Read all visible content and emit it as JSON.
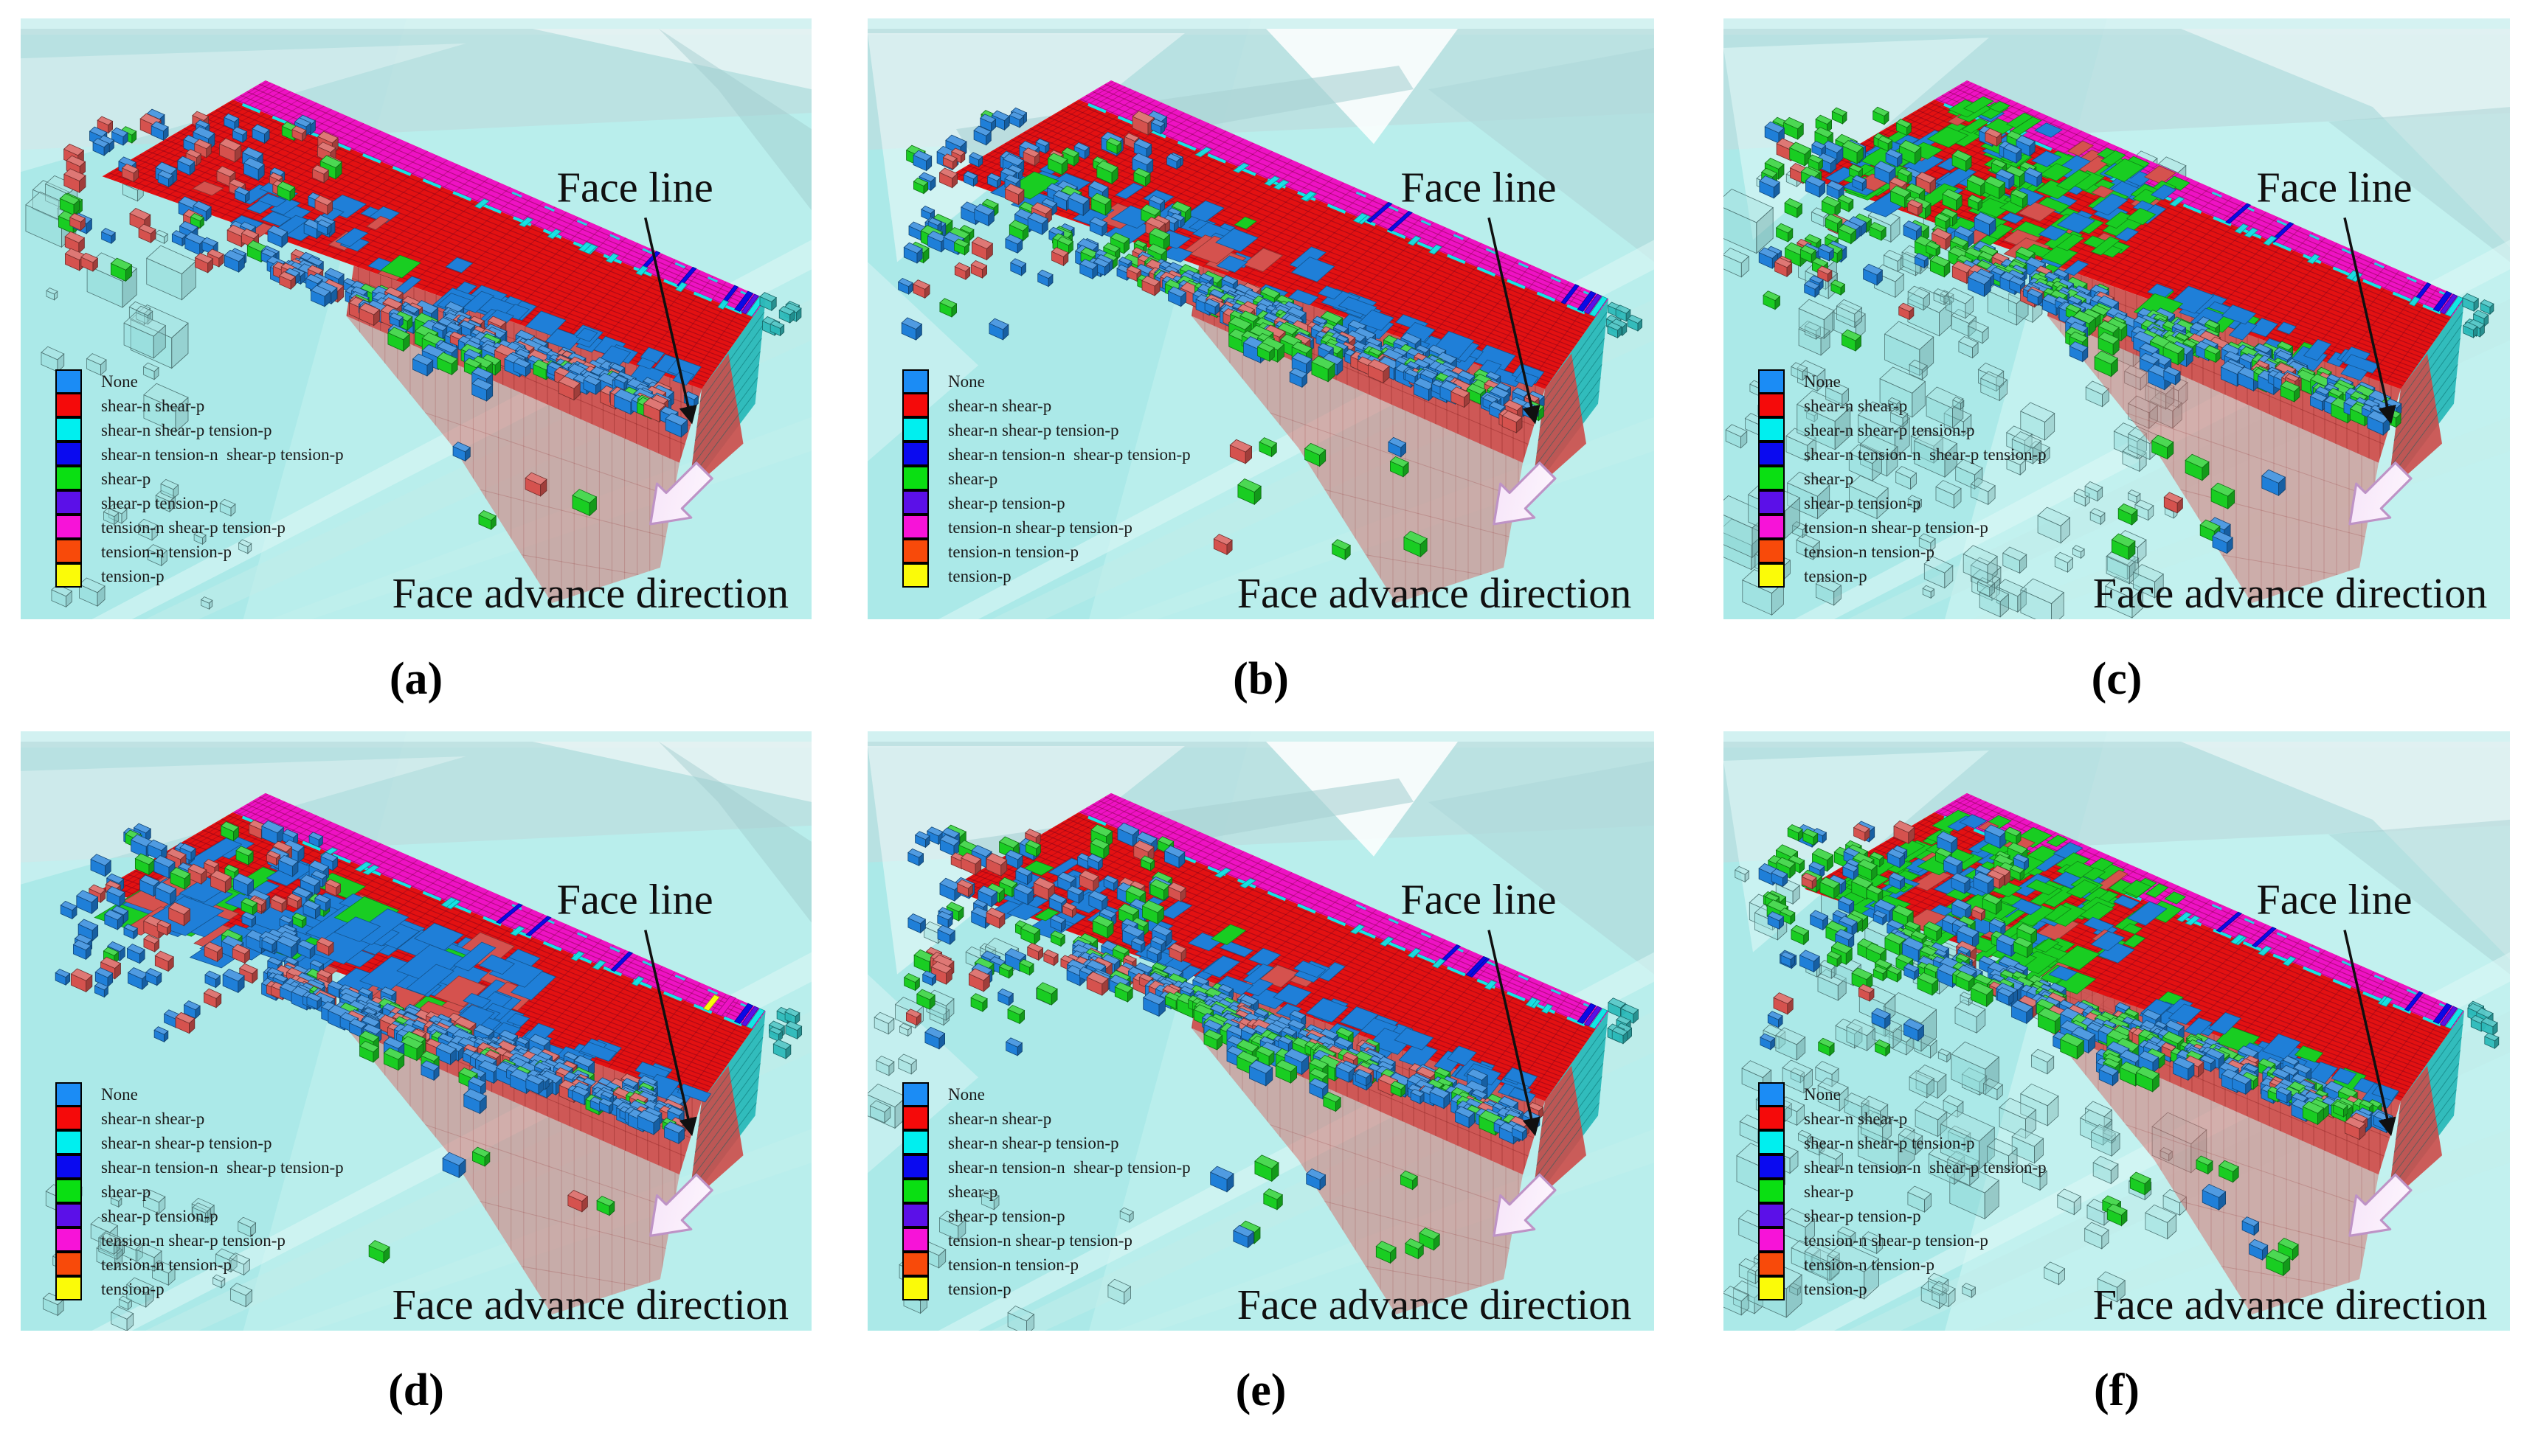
{
  "figure": {
    "annotations": {
      "face_line": "Face line",
      "face_advance_direction": "Face advance direction"
    },
    "legend": {
      "entries": [
        {
          "label": "None",
          "color": "#1B8CF5"
        },
        {
          "label": "shear-n shear-p",
          "color": "#F50A0A"
        },
        {
          "label": "shear-n shear-p tension-p",
          "color": "#00EFEF"
        },
        {
          "label": "shear-n tension-n  shear-p tension-p",
          "color": "#0A0AF0"
        },
        {
          "label": "shear-p",
          "color": "#0ADF12"
        },
        {
          "label": "shear-p tension-p",
          "color": "#5B10E8"
        },
        {
          "label": "tension-n shear-p tension-p",
          "color": "#F713D8"
        },
        {
          "label": "tension-n tension-p",
          "color": "#F84A0A"
        },
        {
          "label": "tension-p",
          "color": "#FBFB08"
        }
      ]
    },
    "colors": {
      "panel_background": "#ABE9E8",
      "panel_background_light": "#C9F3F1",
      "slab_top_red": "#E31112",
      "strip_magenta": "#EE12C4",
      "edge_cyan": "#12E6E6",
      "front_wall_red": "#CF4F4D",
      "wall_deep_red": "#D66A66",
      "end_cap_teal": "#2CB9B9",
      "block_blue": "#1F7FD8",
      "block_green": "#19CD22",
      "block_red": "#D5524E",
      "ghost_teal": "#8FD8D6",
      "text_black": "#111111",
      "advance_arrow_fill": "#F6E3F8",
      "advance_arrow_stroke": "#BE93C6"
    },
    "panels": [
      {
        "id": "a",
        "label": "(a)",
        "variant": {
          "seed": 101,
          "bg_style": 0,
          "ghost_field": 18,
          "ghost_wide": 0,
          "ghost_corner": 12,
          "green_carpet": 0,
          "top_scatter": 26,
          "top_extent": 0.5,
          "left_cluster": 85,
          "left_green": 0.1,
          "left_red": 0.26,
          "front_band": 140,
          "front_start": 0.3,
          "front_green": 0.07,
          "front_red": 0.26,
          "wall_stacks": 14,
          "stack_green": 0.45,
          "foreground": 4
        }
      },
      {
        "id": "b",
        "label": "(b)",
        "variant": {
          "seed": 202,
          "bg_style": 1,
          "ghost_field": 0,
          "ghost_wide": 0,
          "ghost_corner": 0,
          "green_carpet": 0,
          "top_scatter": 34,
          "top_extent": 0.5,
          "left_cluster": 100,
          "left_green": 0.3,
          "left_red": 0.2,
          "front_band": 155,
          "front_start": 0.24,
          "front_green": 0.16,
          "front_red": 0.2,
          "wall_stacks": 18,
          "stack_green": 0.55,
          "foreground": 9
        }
      },
      {
        "id": "c",
        "label": "(c)",
        "variant": {
          "seed": 303,
          "bg_style": 2,
          "ghost_field": 130,
          "ghost_wide": 1,
          "ghost_corner": 0,
          "green_carpet": 155,
          "top_scatter": 0,
          "top_extent": 0.5,
          "left_cluster": 100,
          "left_green": 0.55,
          "left_red": 0.1,
          "front_band": 145,
          "front_start": 0.22,
          "front_green": 0.32,
          "front_red": 0.12,
          "wall_stacks": 16,
          "stack_green": 0.6,
          "foreground": 10
        }
      },
      {
        "id": "d",
        "label": "(d)",
        "variant": {
          "seed": 404,
          "bg_style": 0,
          "ghost_field": 0,
          "ghost_wide": 0,
          "ghost_corner": 24,
          "green_carpet": 0,
          "top_scatter": 95,
          "top_extent": 0.62,
          "left_cluster": 95,
          "left_green": 0.14,
          "left_red": 0.25,
          "front_band": 180,
          "front_start": 0.26,
          "front_green": 0.09,
          "front_red": 0.24,
          "wall_stacks": 16,
          "stack_green": 0.4,
          "foreground": 5
        }
      },
      {
        "id": "e",
        "label": "(e)",
        "variant": {
          "seed": 505,
          "bg_style": 1,
          "ghost_field": 14,
          "ghost_wide": 0,
          "ghost_corner": 10,
          "green_carpet": 0,
          "top_scatter": 42,
          "top_extent": 0.52,
          "left_cluster": 105,
          "left_green": 0.34,
          "left_red": 0.2,
          "front_band": 165,
          "front_start": 0.23,
          "front_green": 0.2,
          "front_red": 0.2,
          "wall_stacks": 20,
          "stack_green": 0.6,
          "foreground": 10
        }
      },
      {
        "id": "f",
        "label": "(f)",
        "variant": {
          "seed": 606,
          "bg_style": 2,
          "ghost_field": 120,
          "ghost_wide": 1,
          "ghost_corner": 0,
          "green_carpet": 165,
          "top_scatter": 0,
          "top_extent": 0.5,
          "left_cluster": 105,
          "left_green": 0.5,
          "left_red": 0.1,
          "front_band": 155,
          "front_start": 0.21,
          "front_green": 0.28,
          "front_red": 0.14,
          "wall_stacks": 18,
          "stack_green": 0.55,
          "foreground": 10
        }
      }
    ]
  }
}
